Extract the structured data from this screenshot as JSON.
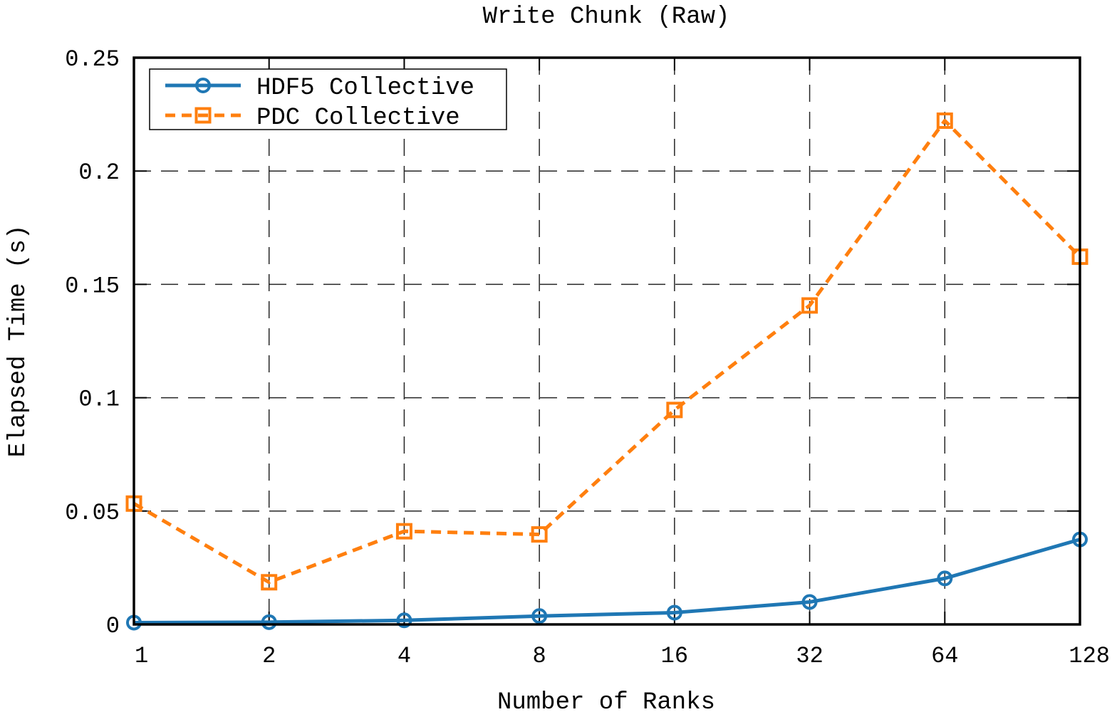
{
  "chart_data": {
    "type": "line",
    "title": "Write Chunk (Raw)",
    "xlabel": "Number of Ranks",
    "ylabel": "Elapsed Time (s)",
    "x": [
      1,
      2,
      4,
      8,
      16,
      32,
      64,
      128
    ],
    "x_scale": "log2",
    "ylim": [
      0,
      0.25
    ],
    "yticks": [
      "0",
      "0.05",
      "0.1",
      "0.15",
      "0.2",
      "0.25"
    ],
    "grid": true,
    "legend_position": "top-left",
    "series": [
      {
        "name": "HDF5 Collective",
        "color": "#1f77b4",
        "line_style": "solid",
        "marker": "circle",
        "values": [
          0.0008,
          0.001,
          0.0018,
          0.0037,
          0.0052,
          0.0099,
          0.0203,
          0.0375
        ]
      },
      {
        "name": "PDC Collective",
        "color": "#ff7f0e",
        "line_style": "dashed",
        "marker": "square",
        "values": [
          0.0533,
          0.0186,
          0.0411,
          0.0397,
          0.0946,
          0.1407,
          0.2222,
          0.1622
        ]
      }
    ]
  }
}
